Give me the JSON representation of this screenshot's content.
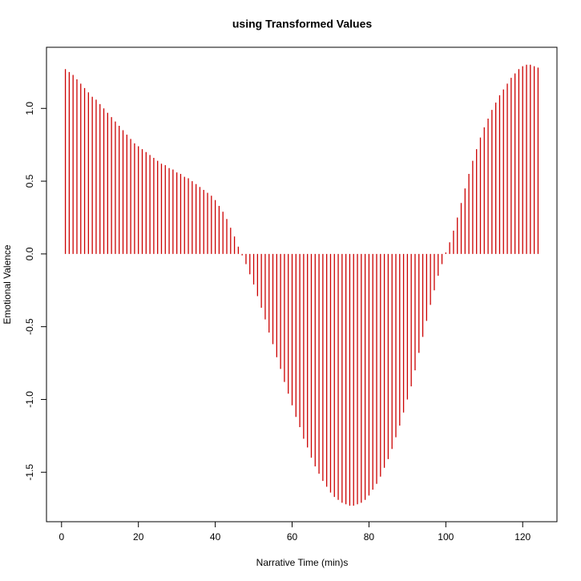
{
  "chart_data": {
    "type": "stem",
    "title": "using Transformed Values",
    "xlabel": "Narrative Time (min)s",
    "ylabel": "Emotional Valence",
    "color": "#cc0000",
    "x": [
      1,
      2,
      3,
      4,
      5,
      6,
      7,
      8,
      9,
      10,
      11,
      12,
      13,
      14,
      15,
      16,
      17,
      18,
      19,
      20,
      21,
      22,
      23,
      24,
      25,
      26,
      27,
      28,
      29,
      30,
      31,
      32,
      33,
      34,
      35,
      36,
      37,
      38,
      39,
      40,
      41,
      42,
      43,
      44,
      45,
      46,
      47,
      48,
      49,
      50,
      51,
      52,
      53,
      54,
      55,
      56,
      57,
      58,
      59,
      60,
      61,
      62,
      63,
      64,
      65,
      66,
      67,
      68,
      69,
      70,
      71,
      72,
      73,
      74,
      75,
      76,
      77,
      78,
      79,
      80,
      81,
      82,
      83,
      84,
      85,
      86,
      87,
      88,
      89,
      90,
      91,
      92,
      93,
      94,
      95,
      96,
      97,
      98,
      99,
      100,
      101,
      102,
      103,
      104,
      105,
      106,
      107,
      108,
      109,
      110,
      111,
      112,
      113,
      114,
      115,
      116,
      117,
      118,
      119,
      120,
      121,
      122,
      123,
      124
    ],
    "values": [
      1.27,
      1.25,
      1.23,
      1.2,
      1.17,
      1.14,
      1.11,
      1.08,
      1.06,
      1.03,
      1.0,
      0.97,
      0.94,
      0.91,
      0.88,
      0.85,
      0.82,
      0.79,
      0.76,
      0.74,
      0.72,
      0.7,
      0.68,
      0.66,
      0.64,
      0.62,
      0.61,
      0.59,
      0.58,
      0.56,
      0.55,
      0.53,
      0.52,
      0.5,
      0.48,
      0.46,
      0.44,
      0.42,
      0.4,
      0.37,
      0.33,
      0.29,
      0.24,
      0.18,
      0.12,
      0.05,
      -0.01,
      -0.07,
      -0.14,
      -0.21,
      -0.29,
      -0.37,
      -0.45,
      -0.54,
      -0.62,
      -0.71,
      -0.79,
      -0.88,
      -0.96,
      -1.04,
      -1.12,
      -1.19,
      -1.27,
      -1.33,
      -1.4,
      -1.46,
      -1.51,
      -1.56,
      -1.6,
      -1.64,
      -1.67,
      -1.69,
      -1.71,
      -1.72,
      -1.73,
      -1.73,
      -1.72,
      -1.71,
      -1.69,
      -1.66,
      -1.62,
      -1.58,
      -1.53,
      -1.47,
      -1.41,
      -1.34,
      -1.26,
      -1.18,
      -1.09,
      -1.0,
      -0.91,
      -0.8,
      -0.68,
      -0.57,
      -0.46,
      -0.35,
      -0.25,
      -0.15,
      -0.07,
      0.01,
      0.08,
      0.16,
      0.25,
      0.35,
      0.45,
      0.55,
      0.64,
      0.72,
      0.8,
      0.87,
      0.93,
      0.99,
      1.04,
      1.09,
      1.13,
      1.17,
      1.21,
      1.24,
      1.27,
      1.29,
      1.3,
      1.3,
      1.29,
      1.28
    ],
    "xlim": [
      -3.92,
      128.92
    ],
    "ylim": [
      -1.84,
      1.42
    ],
    "xticks": [
      0,
      20,
      40,
      60,
      80,
      100,
      120
    ],
    "yticks": [
      -1.5,
      {
        "value": -1,
        "label": "-1.0"
      },
      -0.5,
      {
        "value": 0,
        "label": "0.0"
      },
      0.5,
      {
        "value": 1,
        "label": "1.0"
      }
    ]
  }
}
